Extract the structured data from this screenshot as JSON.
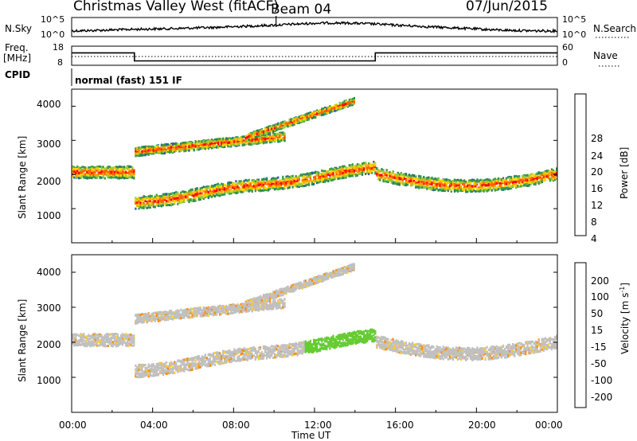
{
  "header": {
    "title": "Christmas Valley West (fitACF)",
    "beam": "Beam 04",
    "date": "07/Jun/2015"
  },
  "left_labels": {
    "nsky": "N.Sky",
    "freq_line1": "Freq.",
    "freq_line2": "[MHz]",
    "cpid": "CPID"
  },
  "right_labels": {
    "nsearch": "N.Search",
    "nave": "Nave"
  },
  "cpid_text": "normal (fast) 151 IF",
  "colors": {
    "power": [
      "#0000ff",
      "#2a5aa8",
      "#2e7d5e",
      "#3a9a4a",
      "#9acd32",
      "#ffd400",
      "#ffa500",
      "#ff6000",
      "#ff0000"
    ],
    "velocity": [
      "#2020c0",
      "#3f6fb0",
      "#2e8b57",
      "#66cc33",
      "#c0c0c0",
      "#ffcc33",
      "#ff8c00",
      "#ff4000",
      "#ff0000"
    ]
  },
  "chart_data": [
    {
      "type": "line",
      "name_panel": "noise",
      "left_ticks": [
        "10^5",
        "10^0"
      ],
      "right_ticks": [
        "10^5",
        "10^0"
      ],
      "x_hours": [
        0,
        1,
        2,
        3,
        4,
        5,
        6,
        7,
        8,
        9,
        10,
        11,
        12,
        13,
        14,
        15,
        16,
        17,
        18,
        19,
        20,
        21,
        22,
        23,
        24
      ],
      "nsky_level": [
        0.3,
        0.32,
        0.35,
        0.38,
        0.4,
        0.42,
        0.45,
        0.48,
        0.52,
        0.56,
        0.6,
        0.65,
        0.7,
        0.72,
        0.7,
        0.66,
        0.6,
        0.55,
        0.5,
        0.45,
        0.4,
        0.35,
        0.32,
        0.3,
        0.3
      ]
    },
    {
      "type": "line",
      "name_panel": "frequency",
      "left_ticks": [
        "18",
        "8"
      ],
      "right_ticks": [
        "60",
        "0"
      ],
      "segments": [
        {
          "start_hour": 0,
          "end_hour": 3.1,
          "freq_mhz": 14.5
        },
        {
          "start_hour": 3.1,
          "end_hour": 15.0,
          "freq_mhz": 10.3
        },
        {
          "start_hour": 15.0,
          "end_hour": 24,
          "freq_mhz": 14.5
        }
      ]
    },
    {
      "type": "heatmap",
      "name_panel": "power",
      "ylabel": "Slant Range [km]",
      "yticks": [
        "1000",
        "2000",
        "3000",
        "4000"
      ],
      "colorbar_label": "Power [dB]",
      "colorbar_ticks": [
        "4",
        "8",
        "12",
        "16",
        "20",
        "24",
        "28"
      ]
    },
    {
      "type": "heatmap",
      "name_panel": "velocity",
      "ylabel": "Slant Range [km]",
      "yticks": [
        "1000",
        "2000",
        "3000",
        "4000"
      ],
      "colorbar_label": "Velocity [m s",
      "colorbar_label_sup": "-1",
      "colorbar_label_end": "]",
      "colorbar_ticks": [
        "200",
        "100",
        "50",
        "15",
        "-15",
        "-50",
        "-100",
        "-200"
      ]
    }
  ],
  "xaxis": {
    "ticks": [
      "00:00",
      "04:00",
      "08:00",
      "12:00",
      "16:00",
      "20:00",
      "00:00"
    ],
    "label": "Time UT"
  }
}
